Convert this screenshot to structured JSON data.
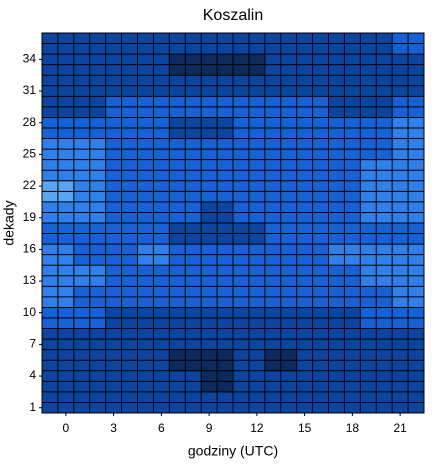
{
  "chart_data": {
    "type": "contour",
    "title": "Koszalin",
    "x_label": "godziny (UTC)",
    "y_label": "dekady",
    "xlim": [
      -1.5,
      22.5
    ],
    "ylim": [
      0.5,
      36.5
    ],
    "xticks": [
      0,
      3,
      6,
      9,
      12,
      15,
      18,
      21
    ],
    "yticks": [
      1,
      4,
      7,
      10,
      13,
      16,
      19,
      22,
      25,
      28,
      31,
      34
    ],
    "grid": true,
    "colors": [
      "#0c2a5c",
      "#0b45a0",
      "#1661d6",
      "#2f80ea",
      "#5aa5f2"
    ],
    "x": [
      -0.5,
      1.5,
      3.5,
      5.5,
      7.5,
      9.5,
      11.5,
      13.5,
      15.5,
      17.5,
      19.5,
      21.5
    ],
    "y": [
      1.5,
      3.5,
      5.5,
      7.5,
      9.5,
      11.5,
      13.5,
      15.5,
      17.5,
      19.5,
      21.5,
      23.5,
      25.5,
      27.5,
      29.5,
      31.5,
      33.5,
      35.5
    ],
    "z": [
      [
        2,
        2,
        2,
        2,
        2,
        2,
        2,
        2,
        2,
        2,
        2,
        2
      ],
      [
        2,
        2,
        2,
        2,
        2,
        1,
        2,
        2,
        2,
        2,
        2,
        2
      ],
      [
        2,
        2,
        2,
        2,
        1,
        1,
        2,
        1,
        2,
        2,
        2,
        2
      ],
      [
        2,
        2,
        2,
        2,
        2,
        2,
        2,
        2,
        2,
        2,
        2,
        2
      ],
      [
        3,
        3,
        2,
        2,
        2,
        2,
        2,
        2,
        2,
        2,
        3,
        3
      ],
      [
        4,
        3,
        3,
        3,
        3,
        3,
        3,
        3,
        3,
        3,
        3,
        4
      ],
      [
        4,
        4,
        3,
        3,
        3,
        3,
        3,
        3,
        3,
        3,
        4,
        4
      ],
      [
        4,
        3,
        3,
        4,
        3,
        3,
        3,
        3,
        3,
        4,
        4,
        4
      ],
      [
        3,
        3,
        3,
        3,
        2,
        2,
        2,
        3,
        3,
        3,
        3,
        3
      ],
      [
        4,
        4,
        3,
        3,
        3,
        2,
        3,
        3,
        3,
        3,
        4,
        4
      ],
      [
        5,
        4,
        3,
        3,
        3,
        3,
        3,
        3,
        3,
        3,
        4,
        4
      ],
      [
        4,
        4,
        3,
        3,
        3,
        3,
        3,
        3,
        3,
        3,
        4,
        4
      ],
      [
        4,
        4,
        3,
        3,
        3,
        3,
        3,
        3,
        3,
        3,
        3,
        4
      ],
      [
        3,
        3,
        3,
        3,
        2,
        2,
        3,
        3,
        3,
        3,
        3,
        4
      ],
      [
        2,
        2,
        3,
        3,
        3,
        3,
        3,
        3,
        3,
        2,
        2,
        3
      ],
      [
        2,
        2,
        2,
        2,
        2,
        2,
        2,
        2,
        2,
        2,
        2,
        2
      ],
      [
        2,
        2,
        2,
        2,
        1,
        1,
        1,
        2,
        2,
        2,
        2,
        2
      ],
      [
        2,
        2,
        2,
        2,
        2,
        2,
        2,
        2,
        2,
        2,
        2,
        3
      ]
    ]
  }
}
